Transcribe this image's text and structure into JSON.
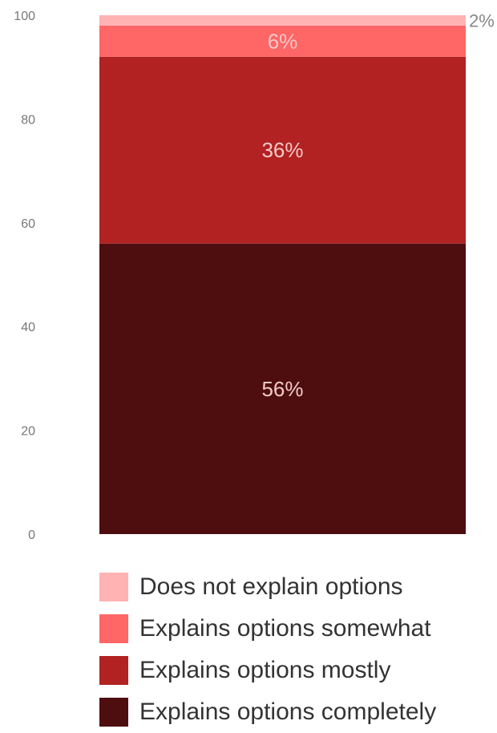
{
  "chart_data": {
    "type": "bar",
    "stacked": true,
    "categories": [
      ""
    ],
    "ylim": [
      0,
      100
    ],
    "yticks": [
      0,
      20,
      40,
      60,
      80,
      100
    ],
    "grid": false,
    "legend_position": "bottom",
    "series": [
      {
        "name": "Explains options completely",
        "values": [
          56
        ],
        "label": "56%",
        "color": "#4e0e10"
      },
      {
        "name": "Explains options mostly",
        "values": [
          36
        ],
        "label": "36%",
        "color": "#b22222"
      },
      {
        "name": "Explains options somewhat",
        "values": [
          6
        ],
        "label": "6%",
        "color": "#ff6666"
      },
      {
        "name": "Does not explain options",
        "values": [
          2
        ],
        "label": "2%",
        "color": "#ffb3b3"
      }
    ]
  },
  "legend": {
    "items": [
      {
        "label": "Does not explain options",
        "color": "#ffb3b3"
      },
      {
        "label": "Explains options somewhat",
        "color": "#ff6666"
      },
      {
        "label": "Explains options mostly",
        "color": "#b22222"
      },
      {
        "label": "Explains options completely",
        "color": "#4e0e10"
      }
    ]
  }
}
